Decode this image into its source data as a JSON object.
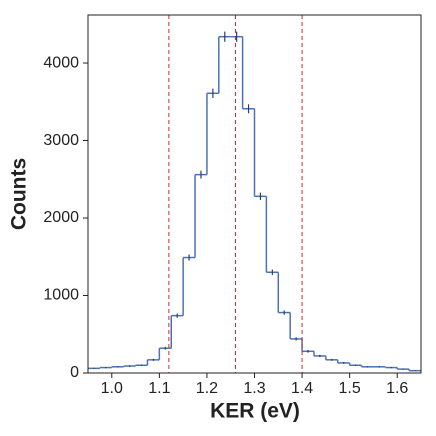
{
  "chart_data": {
    "type": "histogram",
    "x_label": "KER (eV)",
    "y_label": "Counts",
    "bins": [
      0.95,
      0.975,
      1.0,
      1.025,
      1.05,
      1.075,
      1.1,
      1.125,
      1.15,
      1.175,
      1.2,
      1.225,
      1.25,
      1.275,
      1.3,
      1.325,
      1.35,
      1.375,
      1.4,
      1.425,
      1.45,
      1.475,
      1.5,
      1.525,
      1.55,
      1.575,
      1.6,
      1.625,
      1.65
    ],
    "values": [
      60,
      70,
      80,
      90,
      100,
      170,
      320,
      740,
      1490,
      2560,
      3610,
      4340,
      4340,
      3410,
      2280,
      1300,
      780,
      440,
      280,
      220,
      170,
      130,
      100,
      80,
      80,
      70,
      50,
      30
    ],
    "errors": [
      8,
      8,
      9,
      9,
      10,
      13,
      18,
      27,
      39,
      51,
      60,
      66,
      66,
      58,
      48,
      36,
      28,
      21,
      17,
      15,
      13,
      11,
      10,
      9,
      9,
      8,
      7,
      5
    ],
    "color": "#4c72b0",
    "vlines": [
      1.12,
      1.26,
      1.4
    ],
    "vline_color": "#d62728",
    "xlim": [
      0.95,
      1.65
    ],
    "xticks": [
      {
        "value": 1.0,
        "label": "1.0"
      },
      1.1,
      1.2,
      1.3,
      1.4,
      1.5,
      1.6
    ],
    "ylim": [
      0,
      4620
    ],
    "yticks": [
      0,
      1000,
      2000,
      3000,
      4000
    ],
    "grid": false
  }
}
